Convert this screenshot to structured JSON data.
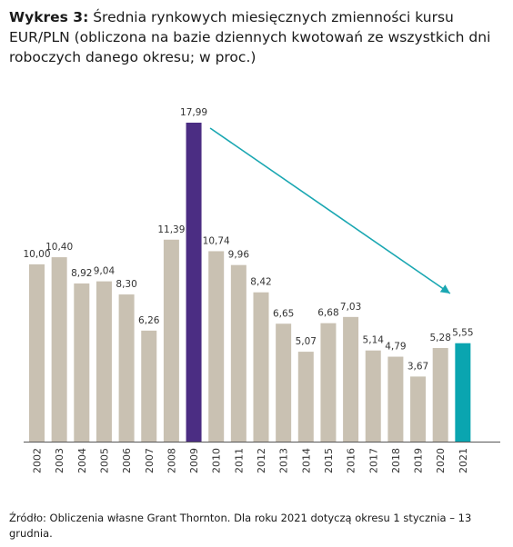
{
  "title": {
    "lead": "Wykres 3:",
    "text": "Średnia rynkowych miesięcznych zmienności kursu EUR/PLN (obliczona na bazie dziennych kwotowań ze wszystkich dni roboczych danego okresu; w proc.)"
  },
  "source": "Źródło: Obliczenia własne Grant Thornton. Dla roku 2021 dotyczą okresu 1 stycznia – 13 grudnia.",
  "chart_data": {
    "type": "bar",
    "title": "",
    "xlabel": "",
    "ylabel": "",
    "categories": [
      "2002",
      "2003",
      "2004",
      "2005",
      "2006",
      "2007",
      "2008",
      "2009",
      "2010",
      "2011",
      "2012",
      "2013",
      "2014",
      "2015",
      "2016",
      "2017",
      "2018",
      "2019",
      "2020",
      "2021"
    ],
    "values": [
      10.0,
      10.4,
      8.92,
      9.04,
      8.3,
      6.26,
      11.39,
      17.99,
      10.74,
      9.96,
      8.42,
      6.65,
      5.07,
      6.68,
      7.03,
      5.14,
      4.79,
      3.67,
      5.28,
      5.55
    ],
    "value_labels": [
      "10,00",
      "10,40",
      "8,92",
      "9,04",
      "8,30",
      "6,26",
      "11,39",
      "17,99",
      "10,74",
      "9,96",
      "8,42",
      "6,65",
      "5,07",
      "6,68",
      "7,03",
      "5,14",
      "4,79",
      "3,67",
      "5,28",
      "5,55"
    ],
    "ylim": [
      0,
      18
    ],
    "grid": false,
    "legend": "none",
    "colors": {
      "default": "#c9c1b2",
      "2009": "#4b2d83",
      "2021": "#0aa5b0",
      "arrow": "#1aa7b2",
      "axis": "#555555"
    },
    "annotations": [
      {
        "type": "trend-arrow",
        "from": "2009",
        "to": "2021"
      }
    ]
  }
}
